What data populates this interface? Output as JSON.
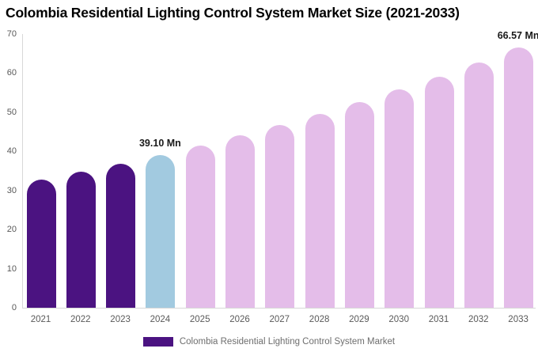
{
  "title": {
    "text": "Colombia Residential Lighting Control System Market Size (2021-2033)"
  },
  "colors": {
    "historical_bar": "#4B1381",
    "base_year_bar": "#A2CAE0",
    "forecast_bar": "#E4BDE9",
    "axis_line": "#D8D8D8",
    "tick_label": "#595959",
    "annotation_text": "#1A1A1A",
    "legend_text": "#6E6E6E",
    "title_text": "#000000",
    "background": "#FFFFFF"
  },
  "chart_data": {
    "type": "bar",
    "title": "Colombia Residential Lighting Control System Market Size (2021-2033)",
    "xlabel": "",
    "ylabel": "",
    "unit": "Mn",
    "categories": [
      "2021",
      "2022",
      "2023",
      "2024",
      "2025",
      "2026",
      "2027",
      "2028",
      "2029",
      "2030",
      "2031",
      "2032",
      "2033"
    ],
    "values": [
      32.74,
      34.74,
      36.85,
      39.1,
      41.48,
      44.01,
      46.69,
      49.53,
      52.55,
      55.75,
      59.15,
      62.75,
      66.57
    ],
    "bar_colors": [
      "#4B1381",
      "#4B1381",
      "#4B1381",
      "#A2CAE0",
      "#E4BDE9",
      "#E4BDE9",
      "#E4BDE9",
      "#E4BDE9",
      "#E4BDE9",
      "#E4BDE9",
      "#E4BDE9",
      "#E4BDE9",
      "#E4BDE9"
    ],
    "ylim": [
      0,
      70
    ],
    "yticks": [
      0,
      10,
      20,
      30,
      40,
      50,
      60,
      70
    ],
    "grid": false,
    "annotations": [
      {
        "category": "2024",
        "text": "39.10 Mn"
      },
      {
        "category": "2033",
        "text": "66.57 Mn"
      }
    ],
    "legend": {
      "position": "bottom",
      "items": [
        {
          "label": "Colombia Residential Lighting Control System Market",
          "color": "#4B1381"
        }
      ]
    }
  }
}
